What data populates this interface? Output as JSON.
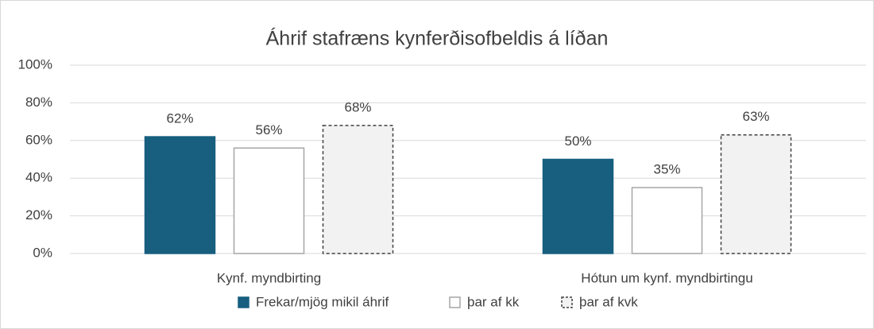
{
  "chart_data": {
    "type": "bar",
    "title": "Áhrif stafræns kynferðisofbeldis á líðan",
    "categories": [
      "Kynf. myndbirting",
      "Hótun um kynf. myndbirtingu"
    ],
    "series": [
      {
        "name": "Frekar/mjög mikil áhrif",
        "color": "#175e7f",
        "edgecolor": "#175e7f",
        "linestyle": "solid",
        "values": [
          62,
          50
        ],
        "value_labels": [
          "62%",
          "50%"
        ]
      },
      {
        "name": "þar af kk",
        "color": "#ffffff",
        "edgecolor": "#a6a6a6",
        "linestyle": "solid",
        "values": [
          56,
          35
        ],
        "value_labels": [
          "56%",
          "35%"
        ]
      },
      {
        "name": "þar af kvk",
        "color": "#f2f2f2",
        "edgecolor": "#404040",
        "linestyle": "dashed",
        "values": [
          68,
          63
        ],
        "value_labels": [
          "68%",
          "63%"
        ]
      }
    ],
    "ylim": [
      0,
      100
    ],
    "yticks": [
      {
        "value": 0,
        "label": "0%"
      },
      {
        "value": 20,
        "label": "20%"
      },
      {
        "value": 40,
        "label": "40%"
      },
      {
        "value": 60,
        "label": "60%"
      },
      {
        "value": 80,
        "label": "80%"
      },
      {
        "value": 100,
        "label": "100%"
      }
    ],
    "grid": true,
    "legend": "bottom"
  }
}
